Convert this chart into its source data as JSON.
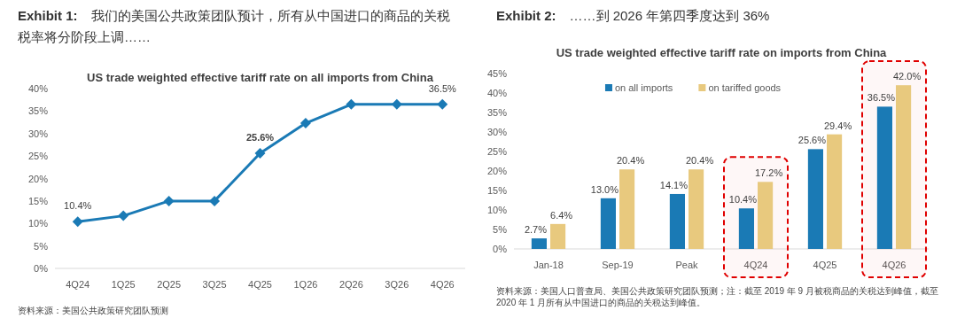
{
  "chart_data": [
    {
      "type": "line",
      "title": "**Exhibit 1:**　我们的美国公共政策团队预计，所有从中国进口的商品的关税税率将分阶段上调……",
      "subtitle": "US trade weighted effective tariff rate on all imports from China",
      "categories": [
        "4Q24",
        "1Q25",
        "2Q25",
        "3Q25",
        "4Q25",
        "1Q26",
        "2Q26",
        "3Q26",
        "4Q26"
      ],
      "values": [
        10.4,
        11.7,
        15.0,
        15.0,
        25.6,
        32.3,
        36.5,
        36.5,
        36.5
      ],
      "value_labels": [
        "10.4%",
        null,
        null,
        null,
        "**25.6%**",
        null,
        null,
        null,
        "36.5%"
      ],
      "color": "#1a7ab5",
      "marker": "diamond",
      "ylim": [
        0,
        40
      ],
      "yticks": [
        {
          "value": 0,
          "label": "0%"
        },
        {
          "value": 5,
          "label": "5%"
        },
        {
          "value": 10,
          "label": "10%"
        },
        {
          "value": 15,
          "label": "15%"
        },
        {
          "value": 20,
          "label": "20%"
        },
        {
          "value": 25,
          "label": "25%"
        },
        {
          "value": 30,
          "label": "30%"
        },
        {
          "value": 35,
          "label": "35%"
        },
        {
          "value": 40,
          "label": "40%"
        }
      ],
      "annotations": [
        "资料来源：美国公共政策研究团队预测"
      ]
    },
    {
      "type": "bar",
      "title": "**Exhibit 2:**　……到 2026 年第四季度达到 36%",
      "subtitle": "US trade weighted effective tariff rate on imports from China",
      "categories": [
        "Jan-18",
        "Sep-19",
        "Peak",
        "4Q24",
        "4Q25",
        "4Q26"
      ],
      "series": [
        {
          "name": "on all imports",
          "color": "#1a7ab5",
          "values": [
            2.7,
            13.0,
            14.1,
            10.4,
            25.6,
            36.5
          ],
          "value_labels": [
            "2.7%",
            "13.0%",
            "14.1%",
            "10.4%",
            "25.6%",
            "36.5%"
          ]
        },
        {
          "name": "on tariffed goods",
          "color": "#e8c97e",
          "values": [
            6.4,
            20.4,
            20.4,
            17.2,
            29.4,
            42.0
          ],
          "value_labels": [
            "6.4%",
            "20.4%",
            "20.4%",
            "17.2%",
            "29.4%",
            "42.0%"
          ]
        }
      ],
      "legend": "top",
      "ylim": [
        0,
        45
      ],
      "yticks": [
        {
          "value": 0,
          "label": "0%"
        },
        {
          "value": 5,
          "label": "5%"
        },
        {
          "value": 10,
          "label": "10%"
        },
        {
          "value": 15,
          "label": "15%"
        },
        {
          "value": 20,
          "label": "20%"
        },
        {
          "value": 25,
          "label": "25%"
        },
        {
          "value": 30,
          "label": "30%"
        },
        {
          "value": 35,
          "label": "35%"
        },
        {
          "value": 40,
          "label": "40%"
        },
        {
          "value": 45,
          "label": "45%"
        }
      ],
      "bands": [
        {
          "axis": "x",
          "from": "4Q24",
          "to": "4Q24",
          "color": "#e00000"
        },
        {
          "axis": "x",
          "from": "4Q26",
          "to": "4Q26",
          "color": "#e00000"
        }
      ],
      "annotations": [
        "资料来源：美国人口普查局、美国公共政策研究团队预测；注：截至 2019 年 9 月被税商品的关税达到峰值，截至 2020 年 1 月所有从中国进口的商品的关税达到峰值。"
      ]
    }
  ]
}
